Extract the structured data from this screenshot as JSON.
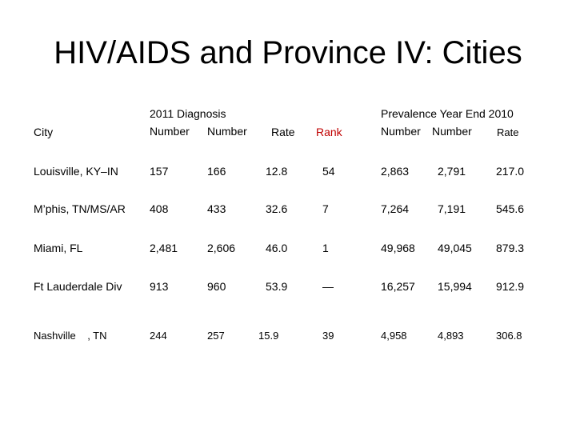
{
  "slide": {
    "title": "HIV/AIDS and Province IV: Cities"
  },
  "table": {
    "headers": {
      "city": "City",
      "diagnosis_group": "2011 Diagnosis",
      "diag_number1": "Number",
      "diag_number2": "Number",
      "diag_rate": "Rate",
      "rank": "Rank",
      "prevalence_group": "Prevalence Year End 2010",
      "prev_number1": "Number",
      "prev_number2": "Number",
      "prev_rate": "Rate"
    },
    "rows": [
      {
        "city": "Louisville, KY–IN",
        "d1": "157",
        "d2": "166",
        "rate": "12.8",
        "rank": "54",
        "p1": "2,863",
        "p2": "2,791",
        "prate": "217.0"
      },
      {
        "city": "M’phis, TN/MS/AR",
        "d1": "408",
        "d2": "433",
        "rate": "32.6",
        "rank": "7",
        "p1": "7,264",
        "p2": "7,191",
        "prate": "545.6"
      },
      {
        "city": "Miami, FL",
        "d1": "2,481",
        "d2": "2,606",
        "rate": "46.0",
        "rank": "1",
        "p1": "49,968",
        "p2": "49,045",
        "prate": "879.3"
      },
      {
        "city": "Ft Lauderdale Div",
        "d1": "913",
        "d2": "960",
        "rate": "53.9",
        "rank": "—",
        "p1": "16,257",
        "p2": "15,994",
        "prate": "912.9"
      },
      {
        "city": "Nashville    , TN",
        "d1": "244",
        "d2": "257",
        "rate": "15.9",
        "rank": "39",
        "p1": "4,958",
        "p2": "4,893",
        "prate": "306.8"
      }
    ]
  },
  "colors": {
    "rank_header": "#c00000",
    "text": "#000000",
    "background": "#ffffff"
  }
}
